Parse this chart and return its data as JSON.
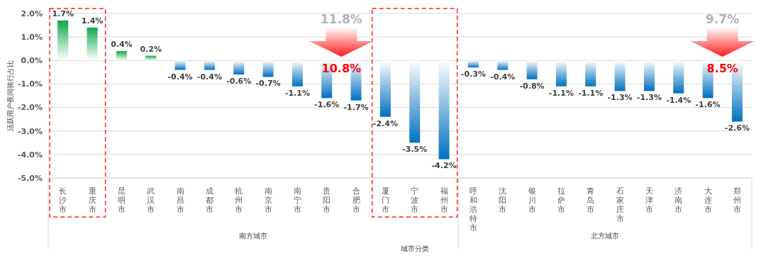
{
  "chart_data": {
    "type": "bar",
    "ylabel": "活跃用户夜间骑行占比",
    "xlabel": "城市分类",
    "categories": [
      "长沙市",
      "重庆市",
      "昆明市",
      "武汉市",
      "南昌市",
      "成都市",
      "杭州市",
      "南京市",
      "南宁市",
      "贵阳市",
      "合肥市",
      "厦门市",
      "宁波市",
      "福州市",
      "呼和浩特市",
      "沈阳市",
      "银川市",
      "拉萨市",
      "青岛市",
      "石家庄市",
      "天津市",
      "济南市",
      "大连市",
      "郑州市"
    ],
    "values": [
      1.7,
      1.4,
      0.4,
      0.2,
      -0.4,
      -0.4,
      -0.6,
      -0.7,
      -1.1,
      -1.6,
      -1.7,
      -2.4,
      -3.5,
      -4.2,
      -0.3,
      -0.4,
      -0.8,
      -1.1,
      -1.1,
      -1.3,
      -1.3,
      -1.4,
      -1.6,
      -2.6
    ],
    "colors": [
      "#10a84b",
      "#10a84b",
      "#10a84b",
      "#10a84b",
      "#0070c0",
      "#0070c0",
      "#0070c0",
      "#0070c0",
      "#0070c0",
      "#0070c0",
      "#0070c0",
      "#0070c0",
      "#0070c0",
      "#0070c0",
      "#0070c0",
      "#0070c0",
      "#0070c0",
      "#0070c0",
      "#0070c0",
      "#0070c0",
      "#0070c0",
      "#0070c0",
      "#0070c0",
      "#0070c0"
    ],
    "value_labels": [
      "1.7%",
      "1.4%",
      "0.4%",
      "0.2%",
      "-0.4%",
      "-0.4%",
      "-0.6%",
      "-0.7%",
      "-1.1%",
      "-1.6%",
      "-1.7%",
      "-2.4%",
      "-3.5%",
      "-4.2%",
      "-0.3%",
      "-0.4%",
      "-0.8%",
      "-1.1%",
      "-1.1%",
      "-1.3%",
      "-1.3%",
      "-1.4%",
      "-1.6%",
      "-2.6%"
    ],
    "ylim": [
      -5,
      2
    ],
    "yticks": [
      {
        "value": -5,
        "label": "-5.0%"
      },
      {
        "value": -4,
        "label": "-4.0%"
      },
      {
        "value": -3,
        "label": "-3.0%"
      },
      {
        "value": -2,
        "label": "-2.0%"
      },
      {
        "value": -1,
        "label": "-1.0%"
      },
      {
        "value": 0,
        "label": "0.0%"
      },
      {
        "value": 1,
        "label": "1.0%"
      },
      {
        "value": 2,
        "label": "2.0%"
      }
    ],
    "grid": "y",
    "legend": false,
    "annotations": [
      "11.8%",
      "10.8%",
      "9.7%",
      "8.5%",
      "南方城市",
      "北方城市"
    ]
  }
}
